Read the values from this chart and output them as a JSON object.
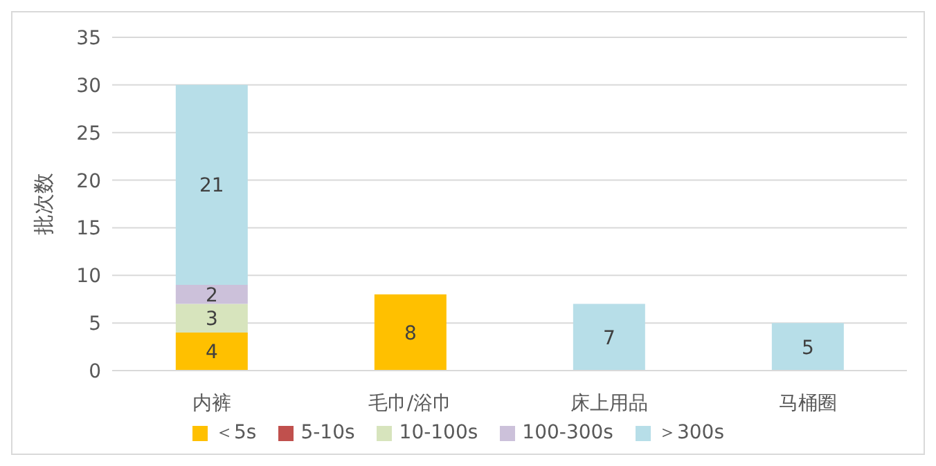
{
  "chart_data": {
    "type": "bar",
    "stacked": true,
    "ylabel": "批次数",
    "categories": [
      "内裤",
      "毛巾/浴巾",
      "床上用品",
      "马桶圈"
    ],
    "series": [
      {
        "name": "＜5s",
        "color": "#ffc000",
        "values": [
          4,
          8,
          0,
          0
        ],
        "value_labels": [
          "4",
          "8",
          null,
          null
        ]
      },
      {
        "name": "5-10s",
        "color": "#c0504d",
        "values": [
          0,
          0,
          0,
          0
        ],
        "value_labels": [
          null,
          null,
          null,
          null
        ]
      },
      {
        "name": "10-100s",
        "color": "#d7e4bd",
        "values": [
          3,
          0,
          0,
          0
        ],
        "value_labels": [
          "3",
          null,
          null,
          null
        ]
      },
      {
        "name": "100-300s",
        "color": "#ccc1da",
        "values": [
          2,
          0,
          0,
          0
        ],
        "value_labels": [
          "2",
          null,
          null,
          null
        ]
      },
      {
        "name": "＞300s",
        "color": "#b7dee8",
        "values": [
          21,
          0,
          7,
          5
        ],
        "value_labels": [
          "21",
          null,
          "7",
          "5"
        ]
      }
    ],
    "ylim": [
      0,
      35
    ],
    "yticks": [
      0,
      5,
      10,
      15,
      20,
      25,
      30,
      35
    ],
    "grid": "y",
    "legend": "bottom"
  }
}
